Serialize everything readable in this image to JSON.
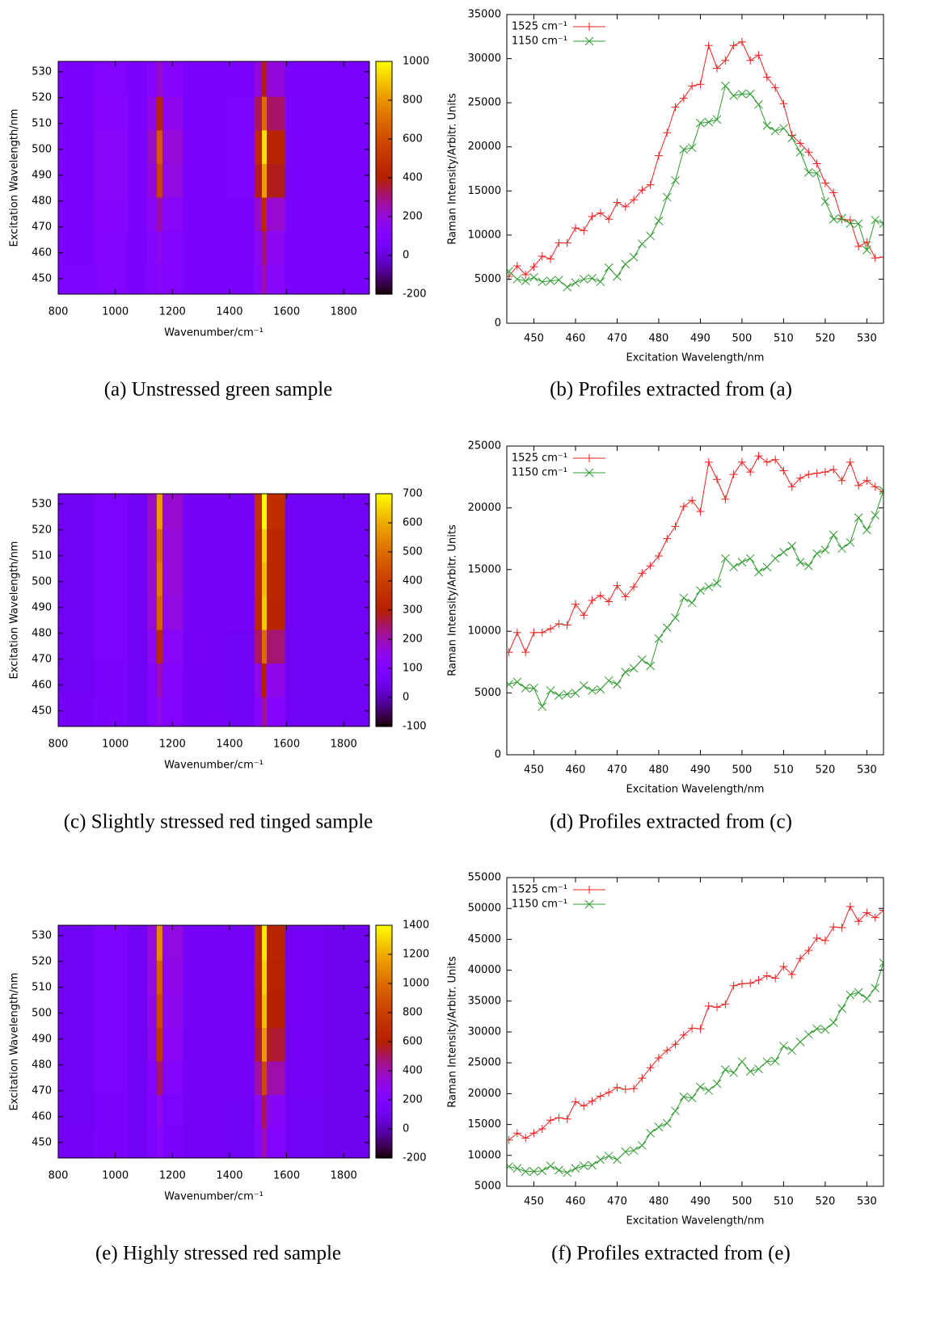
{
  "chart_data": [
    {
      "type": "heatmap",
      "caption": "(a) Unstressed green sample",
      "x_label": "Wavenumber/cm⁻¹",
      "y_label": "Excitation Wavelength/nm",
      "colormap": "gnuplot",
      "x": [
        850,
        1000,
        1090,
        1135,
        1155,
        1175,
        1300,
        1470,
        1505,
        1522,
        1539,
        1650,
        1820
      ],
      "y": [
        449,
        462,
        475,
        488,
        501,
        514,
        527
      ],
      "z": [
        [
          90,
          100,
          80,
          110,
          150,
          110,
          80,
          80,
          140,
          250,
          140,
          80,
          70
        ],
        [
          80,
          110,
          80,
          120,
          170,
          110,
          80,
          80,
          160,
          300,
          160,
          80,
          70
        ],
        [
          80,
          130,
          80,
          150,
          260,
          140,
          80,
          80,
          220,
          450,
          220,
          80,
          70
        ],
        [
          80,
          140,
          80,
          200,
          560,
          190,
          80,
          90,
          380,
          820,
          380,
          80,
          70
        ],
        [
          80,
          140,
          80,
          230,
          640,
          210,
          80,
          90,
          450,
          950,
          430,
          80,
          70
        ],
        [
          80,
          130,
          80,
          180,
          420,
          170,
          80,
          90,
          330,
          700,
          320,
          80,
          70
        ],
        [
          80,
          110,
          80,
          130,
          220,
          130,
          80,
          80,
          200,
          380,
          200,
          80,
          70
        ]
      ],
      "xlim": [
        800,
        1890
      ],
      "ylim": [
        444,
        534
      ],
      "xticks": [
        800,
        1000,
        1200,
        1400,
        1600,
        1800
      ],
      "yticks": [
        450,
        460,
        470,
        480,
        490,
        500,
        510,
        520,
        530
      ],
      "clim": [
        -200,
        1000
      ],
      "cticks": [
        -200,
        0,
        200,
        400,
        600,
        800,
        1000
      ]
    },
    {
      "type": "line",
      "caption": "(b) Profiles extracted from (a)",
      "x_label": "Excitation Wavelength/nm",
      "y_label": "Raman Intensity/Arbitr. Units",
      "legend": "upper left",
      "x": [
        444,
        446,
        448,
        450,
        452,
        454,
        456,
        458,
        460,
        462,
        464,
        466,
        468,
        470,
        472,
        474,
        476,
        478,
        480,
        482,
        484,
        486,
        488,
        490,
        492,
        494,
        496,
        498,
        500,
        502,
        504,
        506,
        508,
        510,
        512,
        514,
        516,
        518,
        520,
        522,
        524,
        526,
        528,
        530,
        532,
        534
      ],
      "series": [
        {
          "name": "1525 cm⁻¹",
          "color": "#ee2020",
          "marker": "plus",
          "values": [
            5300,
            6500,
            5500,
            6400,
            7600,
            7300,
            9100,
            9100,
            10800,
            10500,
            12100,
            12500,
            11800,
            13700,
            13200,
            14000,
            15100,
            15700,
            19000,
            21600,
            24500,
            25500,
            26900,
            27100,
            31500,
            28900,
            29800,
            31500,
            31900,
            29800,
            30400,
            27900,
            26700,
            24900,
            21300,
            20400,
            19400,
            18100,
            15900,
            14800,
            11800,
            11700,
            8700,
            9200,
            7400,
            7500
          ]
        },
        {
          "name": "1150 cm⁻¹",
          "color": "#2e9a2e",
          "marker": "cross",
          "values": [
            5900,
            5000,
            4800,
            5200,
            4700,
            4800,
            4900,
            4100,
            4600,
            5000,
            5100,
            4700,
            6300,
            5300,
            6700,
            7500,
            9000,
            9900,
            11600,
            14300,
            16200,
            19700,
            19900,
            22700,
            22800,
            23100,
            26900,
            25800,
            26000,
            26000,
            24800,
            22400,
            21800,
            22100,
            21000,
            19400,
            17100,
            17000,
            13800,
            11800,
            11900,
            11300,
            11300,
            8300,
            11700,
            11300
          ]
        }
      ],
      "xlim": [
        443.5,
        534
      ],
      "ylim": [
        0,
        35000
      ],
      "xticks": [
        450,
        460,
        470,
        480,
        490,
        500,
        510,
        520,
        530
      ],
      "yticks": [
        0,
        5000,
        10000,
        15000,
        20000,
        25000,
        30000,
        35000
      ]
    },
    {
      "type": "heatmap",
      "caption": "(c) Slightly stressed red tinged sample",
      "x_label": "Wavenumber/cm⁻¹",
      "y_label": "Excitation Wavelength/nm",
      "colormap": "gnuplot",
      "x": [
        850,
        1000,
        1090,
        1135,
        1155,
        1175,
        1300,
        1470,
        1505,
        1522,
        1539,
        1650,
        1820
      ],
      "y": [
        449,
        462,
        475,
        488,
        501,
        514,
        527
      ],
      "z": [
        [
          70,
          80,
          60,
          100,
          150,
          100,
          70,
          60,
          120,
          220,
          120,
          60,
          60
        ],
        [
          60,
          80,
          60,
          110,
          200,
          110,
          70,
          60,
          150,
          300,
          150,
          60,
          60
        ],
        [
          60,
          90,
          60,
          140,
          330,
          130,
          70,
          60,
          250,
          500,
          240,
          60,
          60
        ],
        [
          60,
          90,
          60,
          170,
          480,
          160,
          70,
          70,
          330,
          640,
          320,
          60,
          60
        ],
        [
          60,
          90,
          60,
          180,
          520,
          170,
          70,
          70,
          340,
          620,
          330,
          60,
          60
        ],
        [
          60,
          90,
          60,
          180,
          500,
          170,
          70,
          70,
          340,
          650,
          330,
          60,
          60
        ],
        [
          60,
          90,
          60,
          190,
          580,
          180,
          70,
          70,
          360,
          700,
          350,
          60,
          60
        ]
      ],
      "xlim": [
        800,
        1890
      ],
      "ylim": [
        444,
        534
      ],
      "xticks": [
        800,
        1000,
        1200,
        1400,
        1600,
        1800
      ],
      "yticks": [
        450,
        460,
        470,
        480,
        490,
        500,
        510,
        520,
        530
      ],
      "clim": [
        -100,
        700
      ],
      "cticks": [
        -100,
        0,
        100,
        200,
        300,
        400,
        500,
        600,
        700
      ]
    },
    {
      "type": "line",
      "caption": "(d) Profiles extracted from (c)",
      "x_label": "Excitation Wavelength/nm",
      "y_label": "Raman Intensity/Arbitr. Units",
      "legend": "upper left",
      "x": [
        444,
        446,
        448,
        450,
        452,
        454,
        456,
        458,
        460,
        462,
        464,
        466,
        468,
        470,
        472,
        474,
        476,
        478,
        480,
        482,
        484,
        486,
        488,
        490,
        492,
        494,
        496,
        498,
        500,
        502,
        504,
        506,
        508,
        510,
        512,
        514,
        516,
        518,
        520,
        522,
        524,
        526,
        528,
        530,
        532,
        534
      ],
      "series": [
        {
          "name": "1525 cm⁻¹",
          "color": "#ee2020",
          "marker": "plus",
          "values": [
            8300,
            9900,
            8300,
            9900,
            9900,
            10200,
            10600,
            10500,
            12200,
            11300,
            12500,
            12900,
            12400,
            13700,
            12800,
            13600,
            14700,
            15300,
            16100,
            17500,
            18500,
            20100,
            20600,
            19700,
            23700,
            22300,
            20700,
            22700,
            23700,
            22900,
            24200,
            23700,
            23900,
            23000,
            21700,
            22400,
            22700,
            22800,
            22900,
            23100,
            22200,
            23700,
            21800,
            22200,
            21700,
            21300
          ]
        },
        {
          "name": "1150 cm⁻¹",
          "color": "#2e9a2e",
          "marker": "cross",
          "values": [
            5700,
            5900,
            5400,
            5400,
            3900,
            5200,
            4800,
            4900,
            5000,
            5600,
            5200,
            5300,
            6000,
            5700,
            6700,
            7000,
            7700,
            7200,
            9400,
            10300,
            11100,
            12700,
            12300,
            13300,
            13600,
            13900,
            15900,
            15200,
            15600,
            15900,
            14800,
            15200,
            15900,
            16400,
            16900,
            15600,
            15300,
            16300,
            16600,
            17800,
            16700,
            17200,
            19200,
            18200,
            19400,
            21400
          ]
        }
      ],
      "xlim": [
        443.5,
        534
      ],
      "ylim": [
        0,
        25000
      ],
      "xticks": [
        450,
        460,
        470,
        480,
        490,
        500,
        510,
        520,
        530
      ],
      "yticks": [
        0,
        5000,
        10000,
        15000,
        20000,
        25000
      ]
    },
    {
      "type": "heatmap",
      "caption": "(e) Highly stressed red sample",
      "x_label": "Wavenumber/cm⁻¹",
      "y_label": "Excitation Wavelength/nm",
      "colormap": "gnuplot",
      "x": [
        850,
        1000,
        1090,
        1135,
        1155,
        1175,
        1300,
        1470,
        1505,
        1522,
        1539,
        1650,
        1820
      ],
      "y": [
        449,
        462,
        475,
        488,
        501,
        514,
        527
      ],
      "z": [
        [
          130,
          170,
          120,
          180,
          250,
          170,
          130,
          120,
          220,
          400,
          220,
          120,
          110
        ],
        [
          120,
          170,
          120,
          190,
          300,
          180,
          130,
          120,
          260,
          500,
          250,
          120,
          110
        ],
        [
          120,
          180,
          120,
          230,
          500,
          220,
          140,
          130,
          420,
          850,
          410,
          130,
          110
        ],
        [
          120,
          180,
          120,
          280,
          750,
          270,
          140,
          130,
          560,
          1150,
          550,
          130,
          110
        ],
        [
          120,
          180,
          120,
          300,
          850,
          290,
          140,
          130,
          620,
          1250,
          600,
          130,
          110
        ],
        [
          120,
          180,
          120,
          320,
          950,
          300,
          140,
          130,
          640,
          1300,
          620,
          130,
          110
        ],
        [
          120,
          180,
          120,
          340,
          1100,
          320,
          140,
          130,
          660,
          1350,
          640,
          130,
          110
        ]
      ],
      "xlim": [
        800,
        1890
      ],
      "ylim": [
        444,
        534
      ],
      "xticks": [
        800,
        1000,
        1200,
        1400,
        1600,
        1800
      ],
      "yticks": [
        450,
        460,
        470,
        480,
        490,
        500,
        510,
        520,
        530
      ],
      "clim": [
        -200,
        1400
      ],
      "cticks": [
        -200,
        0,
        200,
        400,
        600,
        800,
        1000,
        1200,
        1400
      ]
    },
    {
      "type": "line",
      "caption": "(f) Profiles extracted from (e)",
      "x_label": "Excitation Wavelength/nm",
      "y_label": "Raman Intensity/Arbitr. Units",
      "legend": "upper left",
      "x": [
        444,
        446,
        448,
        450,
        452,
        454,
        456,
        458,
        460,
        462,
        464,
        466,
        468,
        470,
        472,
        474,
        476,
        478,
        480,
        482,
        484,
        486,
        488,
        490,
        492,
        494,
        496,
        498,
        500,
        502,
        504,
        506,
        508,
        510,
        512,
        514,
        516,
        518,
        520,
        522,
        524,
        526,
        528,
        530,
        532,
        534
      ],
      "series": [
        {
          "name": "1525 cm⁻¹",
          "color": "#ee2020",
          "marker": "plus",
          "values": [
            12500,
            13600,
            12800,
            13600,
            14300,
            15700,
            16100,
            15900,
            18700,
            18000,
            18800,
            19600,
            20200,
            21000,
            20700,
            20800,
            22500,
            24200,
            25800,
            27000,
            28000,
            29500,
            30600,
            30500,
            34200,
            34000,
            34500,
            37500,
            37800,
            37900,
            38400,
            39100,
            38700,
            40600,
            39300,
            41900,
            43200,
            45200,
            44800,
            47000,
            46900,
            50300,
            47900,
            49300,
            48500,
            49700
          ]
        },
        {
          "name": "1150 cm⁻¹",
          "color": "#2e9a2e",
          "marker": "cross",
          "values": [
            8200,
            7900,
            7400,
            7400,
            7500,
            8300,
            7600,
            7200,
            7900,
            8300,
            8400,
            9300,
            9900,
            9300,
            10600,
            10800,
            11600,
            13600,
            14600,
            15200,
            17200,
            19500,
            19300,
            21100,
            20500,
            21600,
            23900,
            23400,
            25200,
            23600,
            24000,
            25200,
            25300,
            27700,
            27000,
            28400,
            29600,
            30500,
            30400,
            31500,
            33800,
            36000,
            36400,
            35400,
            37100,
            41200
          ]
        }
      ],
      "xlim": [
        443.5,
        534
      ],
      "ylim": [
        5000,
        55000
      ],
      "xticks": [
        450,
        460,
        470,
        480,
        490,
        500,
        510,
        520,
        530
      ],
      "yticks": [
        5000,
        10000,
        15000,
        20000,
        25000,
        30000,
        35000,
        40000,
        45000,
        50000,
        55000
      ]
    }
  ]
}
